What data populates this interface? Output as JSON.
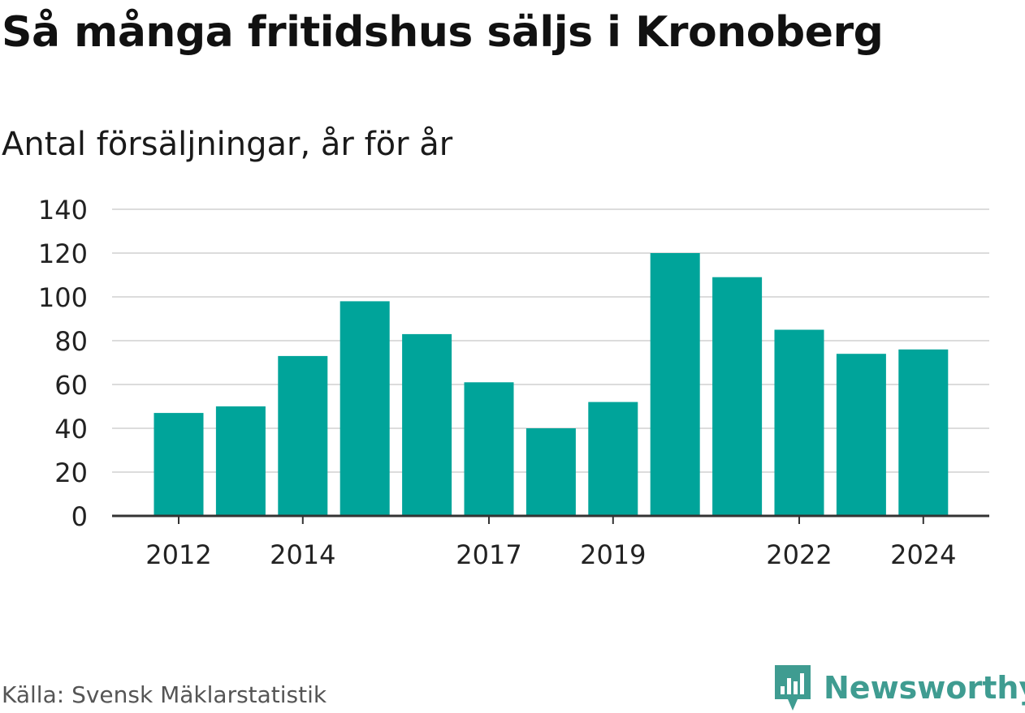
{
  "title": "Så många fritidshus säljs i Kronoberg",
  "subtitle": "Antal försäljningar, år för år",
  "source": "Källa: Svensk Mäklarstatistik",
  "brand": {
    "name": "Newsworthy",
    "icon": "newsworthy-logo-icon"
  },
  "colors": {
    "bar": "#00a49a",
    "grid": "#dcdcdc",
    "axis": "#333333",
    "tick_text": "#222222",
    "brand": "#3f9c91"
  },
  "chart_data": {
    "type": "bar",
    "title": "Så många fritidshus säljs i Kronoberg",
    "subtitle": "Antal försäljningar, år för år",
    "categories": [
      "2012",
      "2013",
      "2014",
      "2015",
      "2016",
      "2017",
      "2018",
      "2019",
      "2020",
      "2021",
      "2022",
      "2023",
      "2024"
    ],
    "values": [
      47,
      50,
      73,
      98,
      83,
      61,
      40,
      52,
      120,
      109,
      85,
      74,
      76
    ],
    "x_tick_labels": [
      "2012",
      "2014",
      "2017",
      "2019",
      "2022",
      "2024"
    ],
    "y_ticks": [
      0,
      20,
      40,
      60,
      80,
      100,
      120,
      140
    ],
    "ylim": [
      0,
      140
    ],
    "xlabel": "",
    "ylabel": "",
    "grid": true,
    "legend": "none"
  }
}
